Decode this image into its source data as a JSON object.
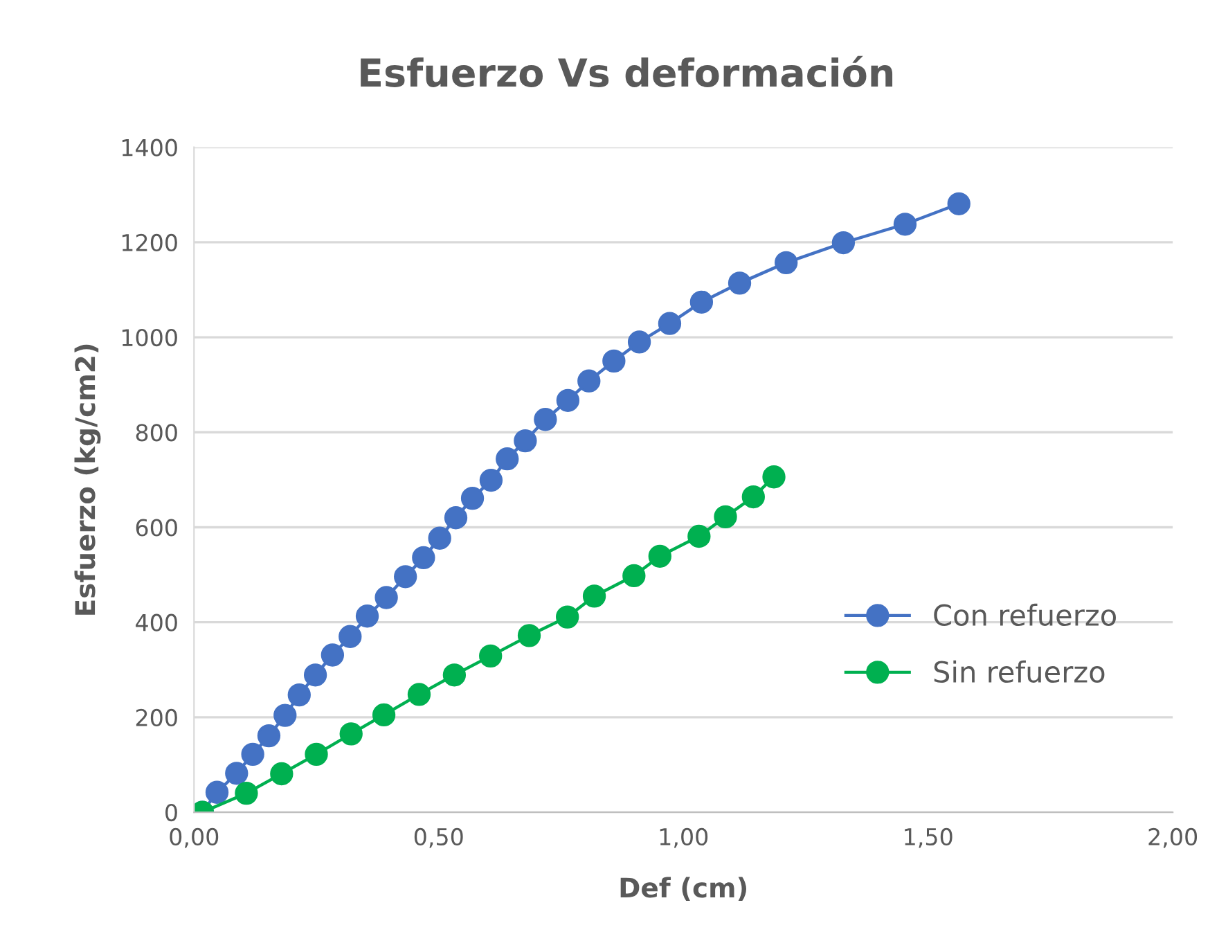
{
  "chart_data": {
    "type": "line",
    "title": "Esfuerzo Vs deformación",
    "xlabel": "Def (cm)",
    "ylabel": "Esfuerzo (kg/cm2)",
    "xlim": [
      0,
      2
    ],
    "ylim": [
      0,
      1400
    ],
    "xticks": [
      {
        "value": 0,
        "label": "0,00"
      },
      {
        "value": 0.5,
        "label": "0,50"
      },
      {
        "value": 1,
        "label": "1,00"
      },
      {
        "value": 1.5,
        "label": "1,50"
      },
      {
        "value": 2,
        "label": "2,00"
      }
    ],
    "yticks": [
      0,
      200,
      400,
      600,
      800,
      1000,
      1200,
      1400
    ],
    "grid": "y",
    "legend": "right",
    "marker": "circle",
    "line_style": "solid",
    "series": [
      {
        "name": "Con refuerzo",
        "color": "#4472c4",
        "x": [
          0.017,
          0.047,
          0.087,
          0.12,
          0.153,
          0.186,
          0.215,
          0.248,
          0.283,
          0.319,
          0.354,
          0.393,
          0.432,
          0.469,
          0.502,
          0.535,
          0.569,
          0.607,
          0.64,
          0.677,
          0.718,
          0.764,
          0.807,
          0.858,
          0.91,
          0.972,
          1.037,
          1.115,
          1.21,
          1.327,
          1.453,
          1.563
        ],
        "values": [
          0,
          42,
          82,
          122,
          161,
          204,
          247,
          289,
          331,
          370,
          413,
          452,
          496,
          536,
          577,
          620,
          661,
          699,
          744,
          782,
          827,
          867,
          908,
          950,
          990,
          1029,
          1074,
          1114,
          1157,
          1199,
          1238,
          1281
        ]
      },
      {
        "name": "Sin refuerzo",
        "color": "#00b050",
        "x": [
          0.017,
          0.107,
          0.179,
          0.25,
          0.321,
          0.388,
          0.46,
          0.532,
          0.606,
          0.685,
          0.763,
          0.818,
          0.899,
          0.952,
          1.032,
          1.086,
          1.143,
          1.185
        ],
        "values": [
          0,
          40,
          81,
          122,
          165,
          205,
          248,
          289,
          329,
          372,
          411,
          455,
          498,
          539,
          581,
          622,
          664,
          706
        ]
      }
    ]
  }
}
